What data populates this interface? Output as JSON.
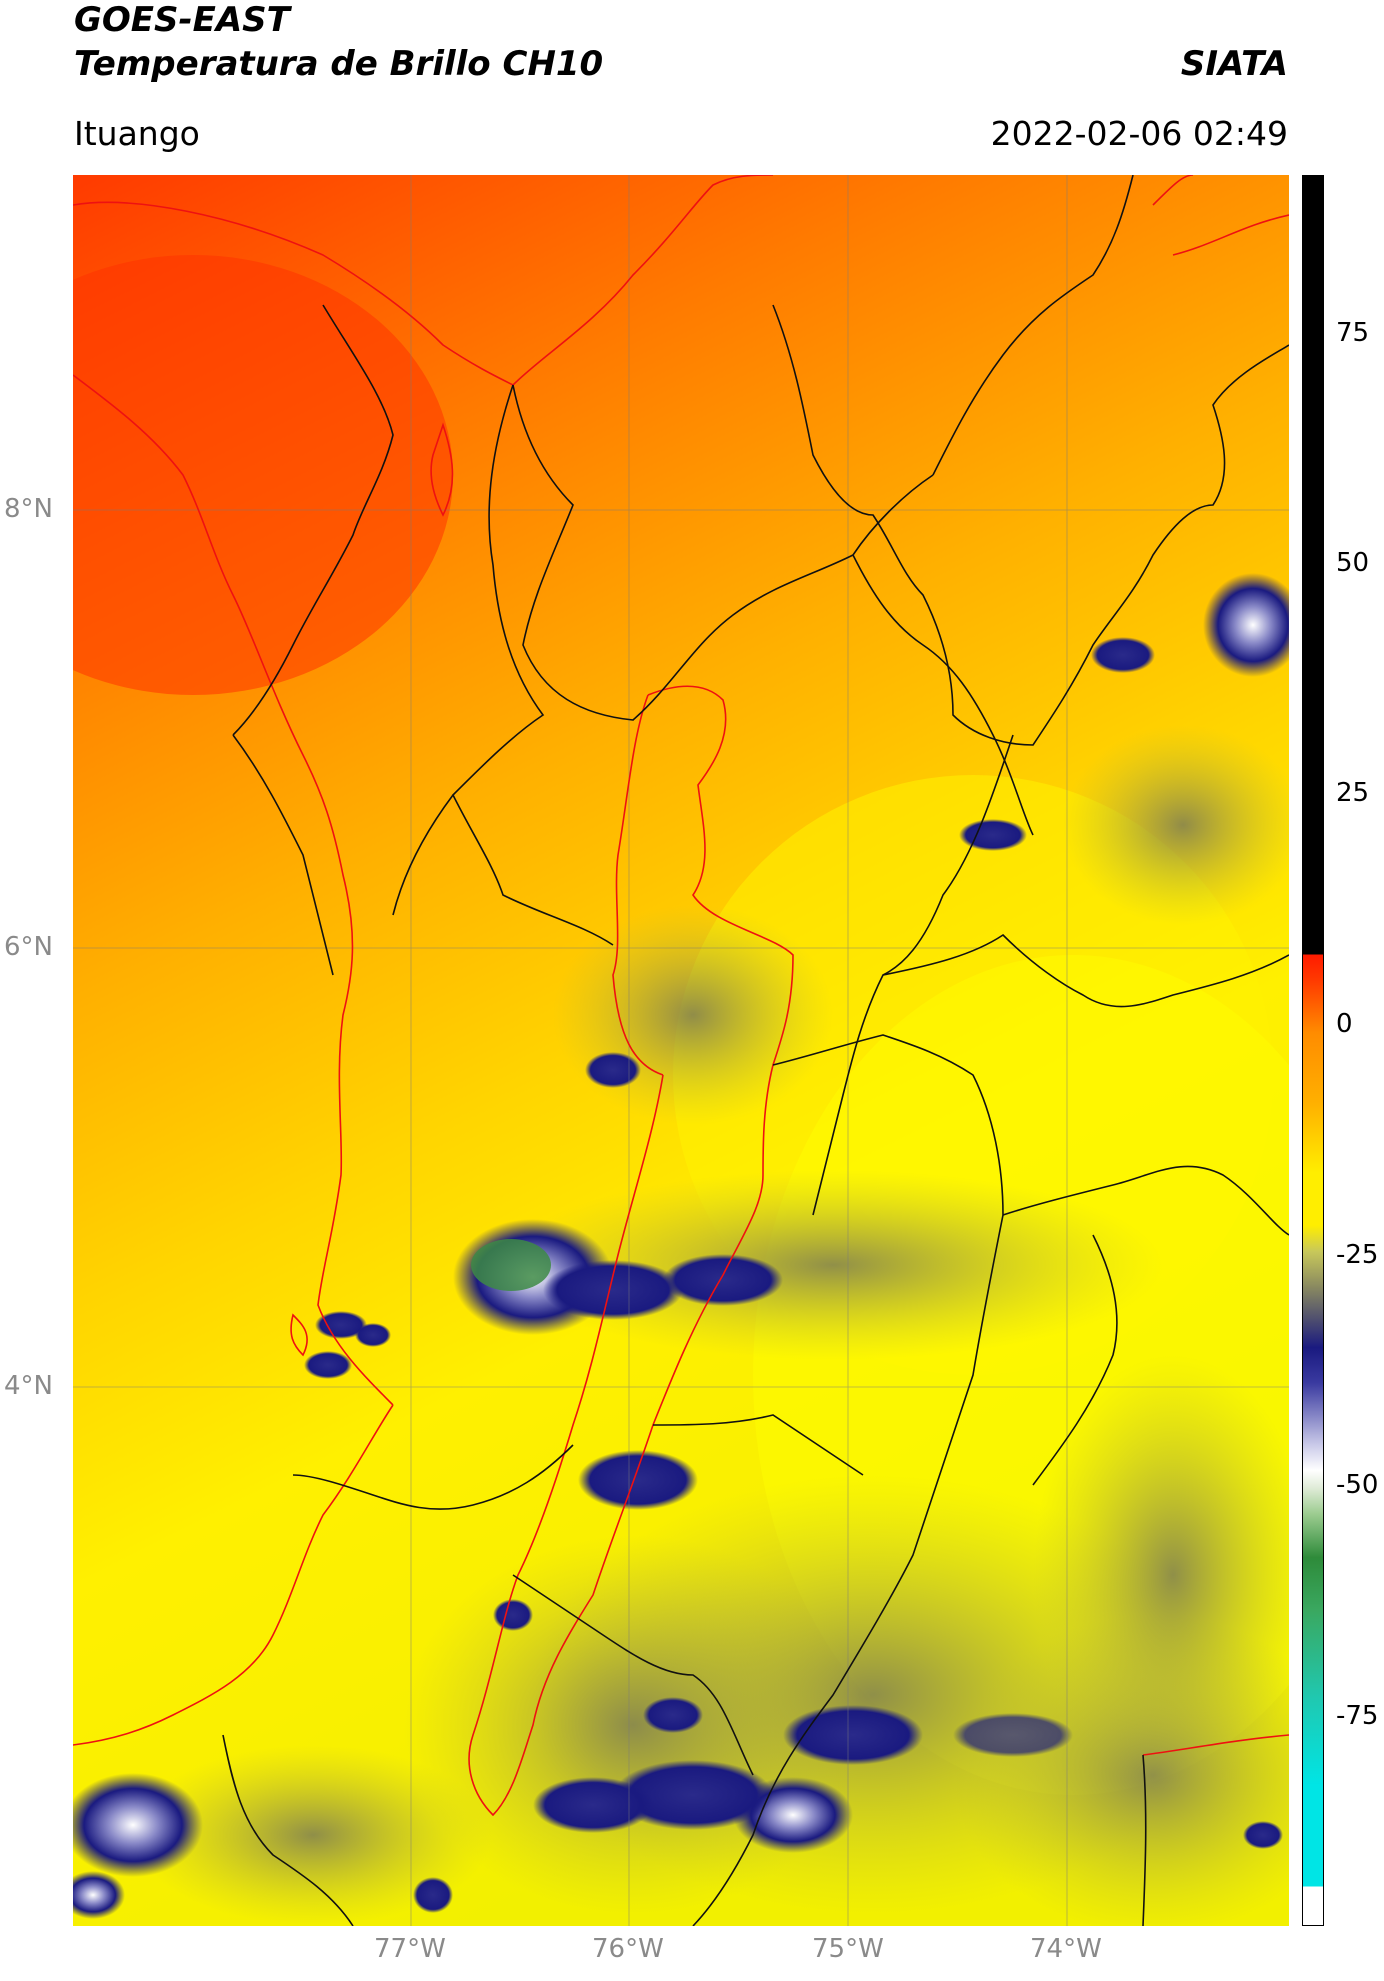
{
  "header": {
    "title_line1": "GOES-EAST",
    "title_line2": "Temperatura de Brillo CH10",
    "brand": "SIATA",
    "place": "Ituango",
    "datetime": "2022-02-06 02:49"
  },
  "axes": {
    "lat_ticks": [
      "8°N",
      "6°N",
      "4°N"
    ],
    "lon_ticks": [
      "77°W",
      "76°W",
      "75°W",
      "74°W"
    ]
  },
  "colorbar": {
    "ticks": [
      "75",
      "50",
      "25",
      "0",
      "-25",
      "-50",
      "-75"
    ],
    "colors": {
      "black": "#000000",
      "red": "#ff1a00",
      "orange": "#ff8c00",
      "yellow": "#ffee00",
      "olive": "#9a9a55",
      "navy": "#1a1a80",
      "white": "#ffffff",
      "green": "#2e8b3a",
      "cyan": "#00e5e5"
    }
  }
}
